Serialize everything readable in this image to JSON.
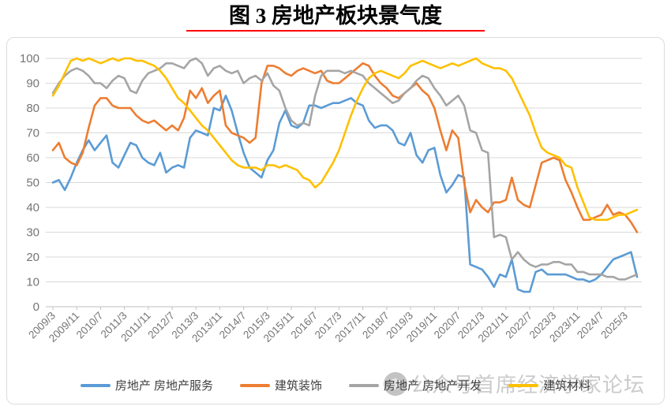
{
  "title": {
    "text": "图 3 房地产板块景气度"
  },
  "title_underline_color": "#fe0000",
  "watermark": {
    "text": "公众号首席经济学家论坛"
  },
  "legend": [
    {
      "label": "房地产 房地产服务",
      "color": "#5b9bd5"
    },
    {
      "label": "建筑装饰",
      "color": "#ed7d31"
    },
    {
      "label": "房地产 房地产开发",
      "color": "#a5a5a5"
    },
    {
      "label": "建筑材料",
      "color": "#ffc000"
    }
  ],
  "chart_data": {
    "type": "line",
    "title": "图 3 房地产板块景气度",
    "xlabel": "",
    "ylabel": "",
    "ylim": [
      0,
      100
    ],
    "ytick_step": 10,
    "grid": "horizontal",
    "legend_position": "bottom",
    "x_sample_interval_months": 2,
    "x_range": [
      "2009/3",
      "2025/7"
    ],
    "x_tick_labels": [
      "2009/3",
      "2009/11",
      "2010/7",
      "2011/3",
      "2011/11",
      "2012/7",
      "2013/3",
      "2013/11",
      "2014/7",
      "2015/3",
      "2015/11",
      "2016/7",
      "2017/3",
      "2017/11",
      "2018/7",
      "2019/3",
      "2019/11",
      "2020/7",
      "2021/3",
      "2021/11",
      "2022/7",
      "2023/3",
      "2023/11",
      "2024/7",
      "2025/3"
    ],
    "x_ticks_every_n_points": 4,
    "series": [
      {
        "name": "房地产 房地产服务",
        "color": "#5b9bd5",
        "values": [
          50,
          51,
          47,
          52,
          58,
          63,
          67,
          63,
          66,
          69,
          58,
          56,
          61,
          66,
          65,
          60,
          58,
          57,
          62,
          54,
          56,
          57,
          56,
          68,
          71,
          70,
          69,
          80,
          79,
          85,
          79,
          70,
          62,
          56,
          54,
          52,
          59,
          63,
          74,
          79,
          73,
          72,
          74,
          81,
          81,
          80,
          81,
          82,
          82,
          83,
          84,
          82,
          81,
          75,
          72,
          73,
          73,
          71,
          66,
          65,
          70,
          61,
          58,
          63,
          64,
          53,
          46,
          49,
          53,
          52,
          17,
          16,
          15,
          12,
          8,
          13,
          12,
          19,
          7,
          6,
          6,
          14,
          15,
          13,
          13,
          13,
          13,
          12,
          11,
          11,
          10,
          11,
          13,
          16,
          19,
          20,
          21,
          22,
          12
        ]
      },
      {
        "name": "建筑装饰",
        "color": "#ed7d31",
        "values": [
          63,
          66,
          60,
          58,
          57,
          62,
          72,
          81,
          84,
          84,
          81,
          80,
          80,
          80,
          77,
          75,
          74,
          75,
          73,
          71,
          73,
          71,
          76,
          87,
          84,
          88,
          82,
          85,
          87,
          73,
          70,
          69,
          68,
          66,
          68,
          90,
          97,
          97,
          96,
          94,
          93,
          95,
          96,
          95,
          94,
          95,
          91,
          90,
          90,
          92,
          94,
          96,
          98,
          97,
          93,
          90,
          88,
          85,
          84,
          86,
          88,
          90,
          87,
          85,
          80,
          71,
          63,
          71,
          68,
          50,
          38,
          43,
          40,
          38,
          42,
          42,
          43,
          52,
          43,
          41,
          40,
          49,
          58,
          59,
          60,
          59,
          51,
          46,
          40,
          35,
          35,
          36,
          37,
          41,
          37,
          38,
          37,
          34,
          30
        ]
      },
      {
        "name": "房地产 房地产开发",
        "color": "#a5a5a5",
        "values": [
          86,
          90,
          93,
          95,
          96,
          95,
          93,
          90,
          90,
          88,
          91,
          93,
          92,
          87,
          86,
          91,
          94,
          95,
          96,
          98,
          98,
          97,
          96,
          99,
          100,
          98,
          93,
          96,
          97,
          95,
          94,
          95,
          90,
          92,
          93,
          91,
          94,
          89,
          87,
          80,
          75,
          73,
          74,
          73,
          85,
          93,
          95,
          95,
          95,
          94,
          95,
          94,
          93,
          90,
          88,
          86,
          84,
          82,
          83,
          86,
          88,
          91,
          93,
          92,
          88,
          85,
          81,
          83,
          85,
          81,
          71,
          70,
          63,
          62,
          28,
          29,
          28,
          19,
          22,
          19,
          17,
          16,
          17,
          17,
          18,
          18,
          17,
          17,
          14,
          14,
          13,
          13,
          13,
          12,
          12,
          11,
          11,
          12,
          13
        ]
      },
      {
        "name": "建筑材料",
        "color": "#ffc000",
        "values": [
          85,
          89,
          94,
          99,
          100,
          99,
          100,
          99,
          98,
          99,
          100,
          99,
          100,
          100,
          99,
          99,
          98,
          97,
          95,
          92,
          88,
          84,
          82,
          79,
          76,
          73,
          71,
          68,
          65,
          62,
          59,
          57,
          56,
          56,
          56,
          55,
          57,
          57,
          56,
          57,
          56,
          55,
          52,
          51,
          48,
          50,
          54,
          58,
          63,
          70,
          77,
          83,
          88,
          92,
          94,
          95,
          94,
          93,
          92,
          94,
          97,
          98,
          99,
          98,
          97,
          96,
          97,
          98,
          97,
          98,
          99,
          100,
          98,
          97,
          96,
          96,
          95,
          92,
          87,
          82,
          77,
          70,
          64,
          62,
          61,
          60,
          57,
          56,
          48,
          42,
          36,
          35,
          35,
          35,
          36,
          37,
          37,
          38,
          39
        ]
      }
    ],
    "axis_colors": {
      "tick_label": "#757575",
      "axis_line": "#bfbfbf",
      "gridline": "#d9d9d9"
    }
  }
}
